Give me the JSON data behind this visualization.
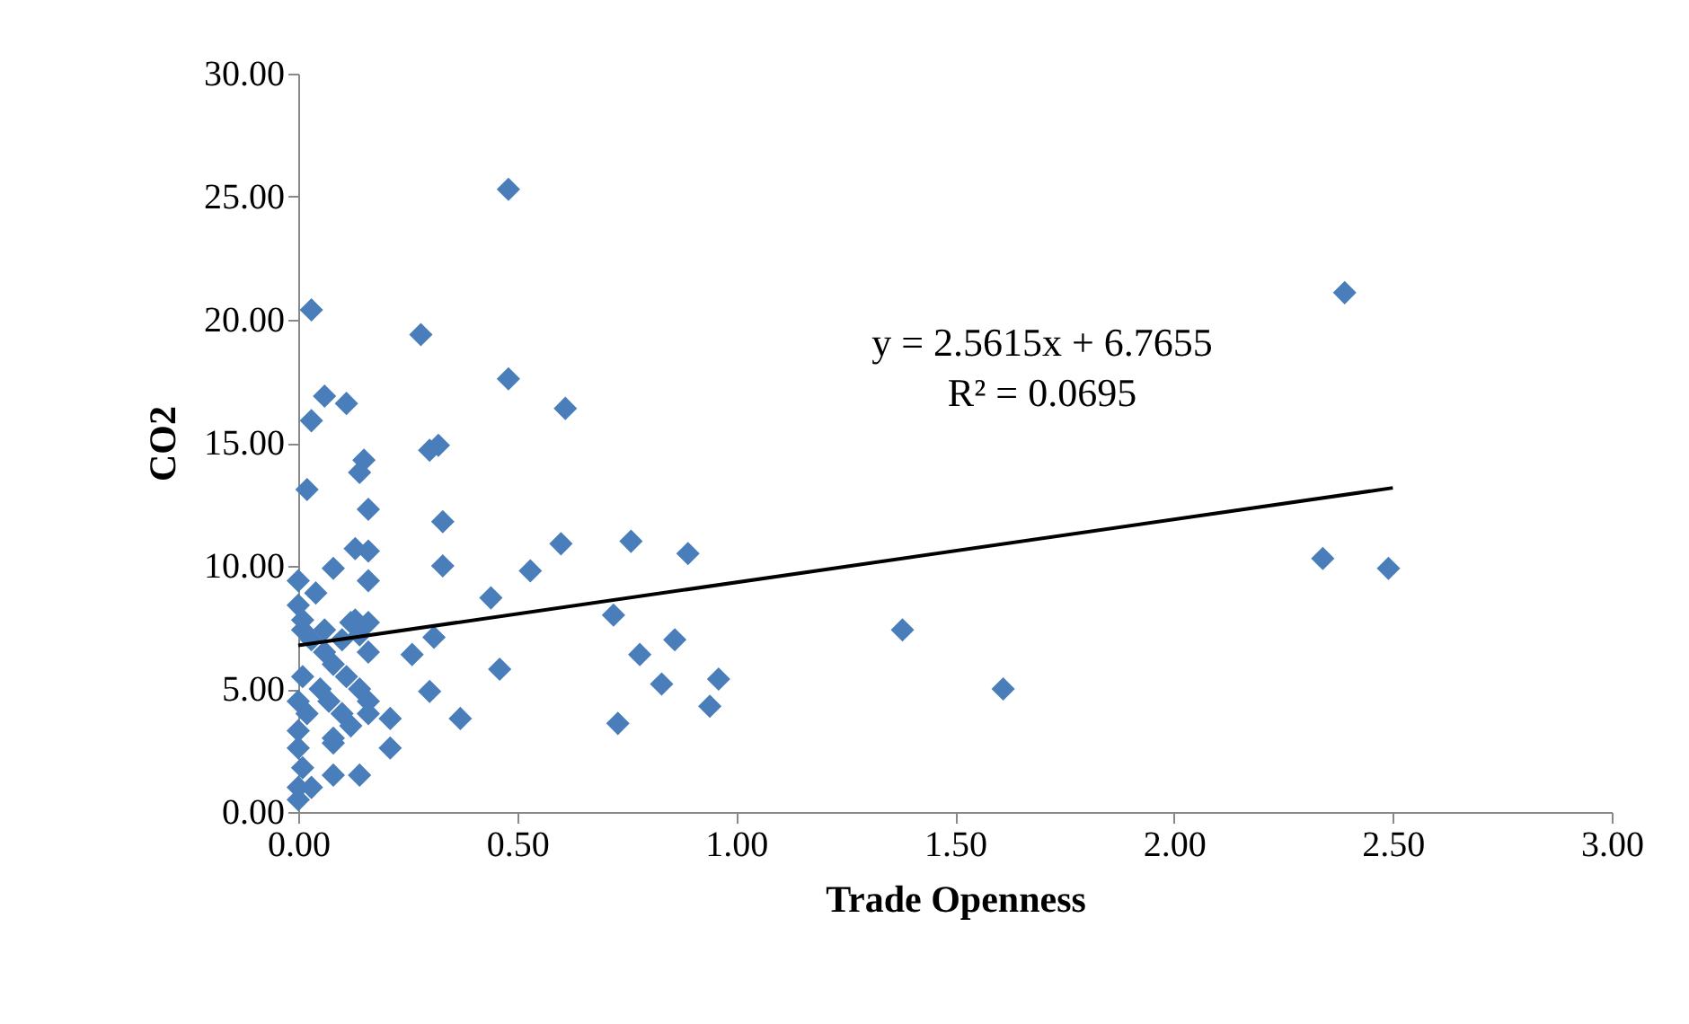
{
  "chart_data": {
    "type": "scatter",
    "xlabel": "Trade Openness",
    "ylabel": "CO2",
    "xlim": [
      0,
      3
    ],
    "ylim": [
      0,
      30
    ],
    "xticks": [
      {
        "value": 0,
        "label": "0.00"
      },
      {
        "value": 0.5,
        "label": "0.50"
      },
      {
        "value": 1,
        "label": "1.00"
      },
      {
        "value": 1.5,
        "label": "1.50"
      },
      {
        "value": 2,
        "label": "2.00"
      },
      {
        "value": 2.5,
        "label": "2.50"
      },
      {
        "value": 3,
        "label": "3.00"
      }
    ],
    "yticks": [
      {
        "value": 0,
        "label": "0.00"
      },
      {
        "value": 5,
        "label": "5.00"
      },
      {
        "value": 10,
        "label": "10.00"
      },
      {
        "value": 15,
        "label": "15.00"
      },
      {
        "value": 20,
        "label": "20.00"
      },
      {
        "value": 25,
        "label": "25.00"
      },
      {
        "value": 30,
        "label": "30.00"
      }
    ],
    "grid": false,
    "annotations": [
      "y = 2.5615x + 6.7655",
      "R² = 0.0695"
    ],
    "series": [
      {
        "color": "#4a7ebb",
        "marker": "diamond",
        "x": [
          0.48,
          2.39,
          0.03,
          0.28,
          0.48,
          0.06,
          0.11,
          0.03,
          0.61,
          0.32,
          0.3,
          0.15,
          0.14,
          0.02,
          0.16,
          0.33,
          0.76,
          0.6,
          0.13,
          0.16,
          0.89,
          2.34,
          2.49,
          0.08,
          0.33,
          0.16,
          0.53,
          0.0,
          0.44,
          0.04,
          0.72,
          0.13,
          0.16,
          0.01,
          1.38,
          0.86,
          0.31,
          0.78,
          0.26,
          0.16,
          0.46,
          0.83,
          1.61,
          0.96,
          0.3,
          0.94,
          0.37,
          0.73,
          0.21,
          0.21,
          0.08,
          0.14,
          0.08,
          0.0,
          0.0,
          0.01,
          0.03,
          0.06,
          0.08,
          0.11,
          0.14,
          0.16,
          0.01,
          0.0,
          0.02,
          0.05,
          0.07,
          0.1,
          0.0,
          0.0,
          0.01,
          0.03,
          0.0,
          0.08,
          0.12,
          0.16,
          0.06,
          0.1,
          0.14,
          0.12
        ],
        "values": [
          25.3,
          21.1,
          20.4,
          19.4,
          17.6,
          16.9,
          16.6,
          15.9,
          16.4,
          14.9,
          14.7,
          14.3,
          13.8,
          13.1,
          12.3,
          11.8,
          11.0,
          10.9,
          10.7,
          10.6,
          10.5,
          10.3,
          9.9,
          9.9,
          10.0,
          9.4,
          9.8,
          9.4,
          8.7,
          8.9,
          8.0,
          7.8,
          7.7,
          7.8,
          7.4,
          7.0,
          7.1,
          6.4,
          6.4,
          6.5,
          5.8,
          5.2,
          5.0,
          5.4,
          4.9,
          4.3,
          3.8,
          3.6,
          3.8,
          2.6,
          2.8,
          1.5,
          1.5,
          0.5,
          8.4,
          7.4,
          7.0,
          6.5,
          6.0,
          5.5,
          5.0,
          4.5,
          5.5,
          4.5,
          4.0,
          5.0,
          4.5,
          4.0,
          3.3,
          2.6,
          1.8,
          1.0,
          1.0,
          3.0,
          3.5,
          4.0,
          7.4,
          7.0,
          7.2,
          7.7
        ]
      },
      {
        "type": "line",
        "color": "#000000",
        "marker": "none",
        "x": [
          0,
          2.5
        ],
        "values": [
          6.77,
          13.17
        ]
      }
    ]
  }
}
